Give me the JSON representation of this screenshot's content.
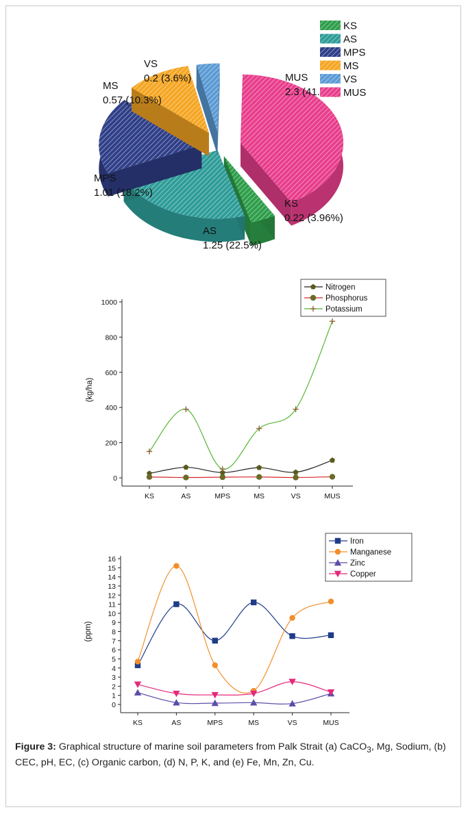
{
  "caption": {
    "label": "Figure 3:",
    "text_part1": "Graphical structure of marine soil parameters from Palk Strait (a) CaCO",
    "subscript": "3",
    "text_part2": ", Mg, Sodium, (b) CEC, pH, EC, (c) Organic carbon, (d) N, P, K, and (e) Fe, Mn, Zn, Cu."
  },
  "chart_data": [
    {
      "type": "pie",
      "slices": [
        {
          "label": "KS",
          "value": 0.22,
          "text": "0.22 (3.96%)",
          "color": "#2e9e4a"
        },
        {
          "label": "AS",
          "value": 1.25,
          "text": "1.25 (22.5%)",
          "color": "#2e9c98"
        },
        {
          "label": "MPS",
          "value": 1.01,
          "text": "1.01 (18.2%)",
          "color": "#2f3f88"
        },
        {
          "label": "MS",
          "value": 0.57,
          "text": "0.57 (10.3%)",
          "color": "#f5a623"
        },
        {
          "label": "VS",
          "value": 0.2,
          "text": "0.2 (3.6%)",
          "color": "#5b9bd5"
        },
        {
          "label": "MUS",
          "value": 2.3,
          "text": "2.3 (41.4%)",
          "color": "#e83e8c"
        }
      ],
      "legend": [
        "KS",
        "AS",
        "MPS",
        "MS",
        "VS",
        "MUS"
      ],
      "legend_position": "top-right"
    },
    {
      "type": "line",
      "categories": [
        "KS",
        "AS",
        "MPS",
        "MS",
        "VS",
        "MUS"
      ],
      "ylabel": "(kg/ha)",
      "ylim": [
        0,
        1000
      ],
      "yticks": [
        0,
        200,
        400,
        600,
        800,
        1000
      ],
      "series": [
        {
          "name": "Nitrogen",
          "values": [
            25,
            60,
            30,
            58,
            32,
            100
          ],
          "color": "#222222",
          "marker": "pentagon",
          "marker_color": "#5a5a1e"
        },
        {
          "name": "Phosphorus",
          "values": [
            5,
            2,
            4,
            5,
            2,
            6
          ],
          "color": "#d62728",
          "marker": "circle",
          "marker_color": "#6b6b2a"
        },
        {
          "name": "Potassium",
          "values": [
            150,
            390,
            50,
            280,
            390,
            890
          ],
          "color": "#55b533",
          "marker": "plus",
          "marker_color": "#8b5a2b"
        }
      ],
      "legend_position": "top-right"
    },
    {
      "type": "line",
      "categories": [
        "KS",
        "AS",
        "MPS",
        "MS",
        "VS",
        "MUS"
      ],
      "ylabel": "(ppm)",
      "ylim": [
        0,
        16
      ],
      "yticks": [
        0,
        1,
        2,
        3,
        4,
        5,
        6,
        7,
        8,
        9,
        10,
        11,
        12,
        13,
        14,
        15,
        16
      ],
      "series": [
        {
          "name": "Iron",
          "values": [
            4.3,
            11.0,
            7.0,
            11.2,
            7.5,
            7.6
          ],
          "color": "#1f3c88",
          "marker": "square"
        },
        {
          "name": "Manganese",
          "values": [
            4.7,
            15.2,
            4.3,
            1.5,
            9.5,
            11.3
          ],
          "color": "#f28e2b",
          "marker": "circle"
        },
        {
          "name": "Zinc",
          "values": [
            1.3,
            0.2,
            0.15,
            0.2,
            0.1,
            1.2
          ],
          "color": "#5b4ea8",
          "marker": "triangle-up"
        },
        {
          "name": "Copper",
          "values": [
            2.2,
            1.2,
            1.05,
            1.2,
            2.5,
            1.35
          ],
          "color": "#e6287a",
          "marker": "triangle-down"
        }
      ],
      "legend_position": "top-right"
    }
  ]
}
